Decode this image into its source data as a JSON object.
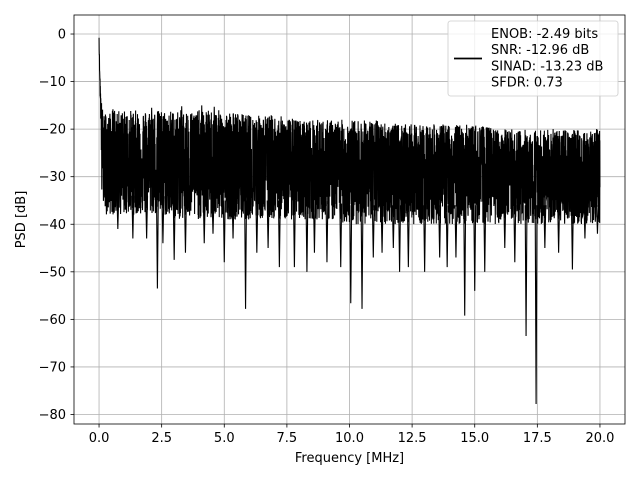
{
  "chart_data": {
    "type": "line",
    "title": "",
    "xlabel": "Frequency [MHz]",
    "ylabel": "PSD [dB]",
    "xlim": [
      -1.0,
      21.0
    ],
    "ylim": [
      -82,
      4
    ],
    "xticks": [
      0.0,
      2.5,
      5.0,
      7.5,
      10.0,
      12.5,
      15.0,
      17.5,
      20.0
    ],
    "xtick_labels": [
      "0.0",
      "2.5",
      "5.0",
      "7.5",
      "10.0",
      "12.5",
      "15.0",
      "17.5",
      "20.0"
    ],
    "yticks": [
      0,
      -10,
      -20,
      -30,
      -40,
      -50,
      -60,
      -70,
      -80
    ],
    "ytick_labels": [
      "0",
      "−10",
      "−20",
      "−30",
      "−40",
      "−50",
      "−60",
      "−70",
      "−80"
    ],
    "grid": true,
    "legend": {
      "placement": "top-right",
      "entries": [
        "ENOB: -2.49 bits",
        "SNR: -12.96 dB",
        "SINAD: -13.23 dB",
        "SFDR: 0.73"
      ]
    },
    "series": [
      {
        "color": "#000000",
        "description": "dense noisy PSD trace",
        "x": [
          0.0,
          0.01,
          0.03,
          0.06,
          0.1,
          0.15,
          0.2,
          0.3,
          0.4,
          0.5,
          0.6,
          0.7,
          0.8,
          1.0,
          1.5,
          2.0,
          2.5,
          3.0,
          4.0,
          5.0,
          6.0,
          7.0,
          8.0,
          9.0,
          10.0,
          11.0,
          12.0,
          13.0,
          14.0,
          15.0,
          16.0,
          17.0,
          18.0,
          19.0,
          20.0
        ],
        "upper": [
          0,
          -3,
          -8,
          -12,
          -14,
          -16,
          -17,
          -16,
          -17,
          -16,
          -15,
          -17,
          -16,
          -16,
          -16,
          -16,
          -16,
          -16,
          -16,
          -16,
          -17,
          -17,
          -18,
          -18,
          -18,
          -18,
          -19,
          -19,
          -19,
          -19,
          -20,
          -20,
          -20,
          -20,
          -20
        ],
        "mean": [
          0,
          -3,
          -8,
          -13,
          -20,
          -24,
          -26,
          -27,
          -27,
          -27,
          -27,
          -27,
          -27,
          -27,
          -27,
          -27,
          -28,
          -28,
          -28,
          -28,
          -28,
          -28,
          -29,
          -29,
          -29,
          -29,
          -29,
          -29,
          -29,
          -30,
          -30,
          -30,
          -30,
          -30,
          -30
        ],
        "lower": [
          -2,
          -5,
          -11,
          -16,
          -34,
          -36,
          -37,
          -38,
          -38,
          -38,
          -38,
          -38,
          -38,
          -38,
          -38,
          -38,
          -38,
          -39,
          -39,
          -39,
          -39,
          -39,
          -39,
          -39,
          -40,
          -40,
          -40,
          -40,
          -40,
          -40,
          -40,
          -40,
          -40,
          -40,
          -40
        ],
        "deep_dips": [
          {
            "x": 0.75,
            "y": -41
          },
          {
            "x": 1.35,
            "y": -43
          },
          {
            "x": 1.9,
            "y": -43
          },
          {
            "x": 2.33,
            "y": -53.5
          },
          {
            "x": 2.55,
            "y": -44
          },
          {
            "x": 3.0,
            "y": -47.5
          },
          {
            "x": 3.45,
            "y": -46
          },
          {
            "x": 4.2,
            "y": -44
          },
          {
            "x": 4.55,
            "y": -42
          },
          {
            "x": 5.0,
            "y": -48
          },
          {
            "x": 5.35,
            "y": -43
          },
          {
            "x": 5.85,
            "y": -57.8
          },
          {
            "x": 6.3,
            "y": -46
          },
          {
            "x": 6.75,
            "y": -45
          },
          {
            "x": 7.2,
            "y": -49
          },
          {
            "x": 7.8,
            "y": -49
          },
          {
            "x": 8.3,
            "y": -50
          },
          {
            "x": 8.6,
            "y": -46
          },
          {
            "x": 9.1,
            "y": -48
          },
          {
            "x": 9.65,
            "y": -49
          },
          {
            "x": 10.05,
            "y": -56.6
          },
          {
            "x": 10.5,
            "y": -57.8
          },
          {
            "x": 10.95,
            "y": -47
          },
          {
            "x": 11.3,
            "y": -46
          },
          {
            "x": 11.75,
            "y": -45
          },
          {
            "x": 12.0,
            "y": -50
          },
          {
            "x": 12.35,
            "y": -49
          },
          {
            "x": 13.0,
            "y": -50
          },
          {
            "x": 13.6,
            "y": -47
          },
          {
            "x": 13.9,
            "y": -49
          },
          {
            "x": 14.25,
            "y": -47
          },
          {
            "x": 14.6,
            "y": -59.2
          },
          {
            "x": 15.0,
            "y": -54
          },
          {
            "x": 15.4,
            "y": -50
          },
          {
            "x": 16.2,
            "y": -45
          },
          {
            "x": 16.6,
            "y": -48
          },
          {
            "x": 17.05,
            "y": -63.5
          },
          {
            "x": 17.45,
            "y": -77.8
          },
          {
            "x": 17.8,
            "y": -45
          },
          {
            "x": 18.35,
            "y": -46
          },
          {
            "x": 18.9,
            "y": -49.5
          },
          {
            "x": 19.4,
            "y": -43
          },
          {
            "x": 19.9,
            "y": -42
          }
        ],
        "peaks": [
          {
            "x": 2.1,
            "y": -15.5
          },
          {
            "x": 3.3,
            "y": -15.2
          },
          {
            "x": 4.1,
            "y": -15
          },
          {
            "x": 4.6,
            "y": -15.3
          }
        ]
      }
    ]
  }
}
